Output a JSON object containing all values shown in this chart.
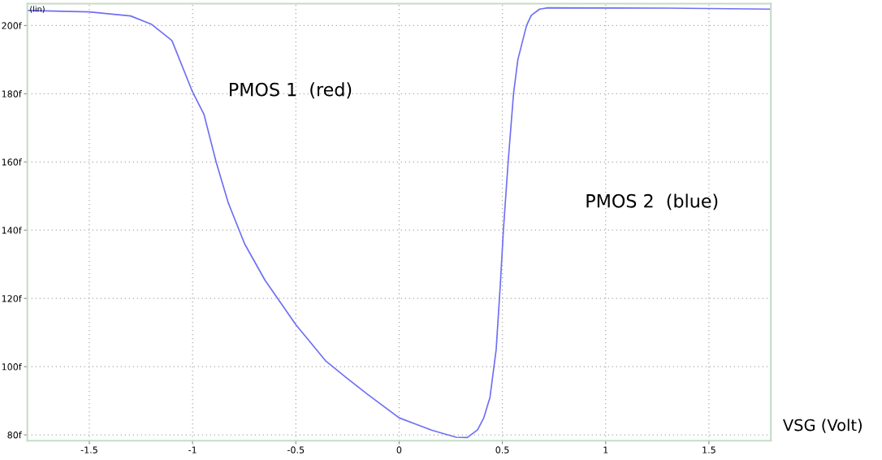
{
  "chart_data": {
    "type": "line",
    "xlabel": "VSG (Volt)",
    "ylabel": "(lin)",
    "annotations": [
      "PMOS 1  (red)",
      "PMOS 2  (blue)"
    ],
    "x": [
      -1.8,
      -1.5,
      -1.3,
      -1.2,
      -1.1,
      -1.0,
      -0.945,
      -0.886,
      -0.827,
      -0.748,
      -0.65,
      -0.5,
      -0.354,
      -0.256,
      -0.157,
      0,
      0.157,
      0.276,
      0.33,
      0.38,
      0.41,
      0.44,
      0.47,
      0.49,
      0.505,
      0.528,
      0.554,
      0.575,
      0.617,
      0.64,
      0.68,
      0.72,
      1.3,
      1.8
    ],
    "series": [
      {
        "color": "#6f6ff5",
        "values": [
          204.4,
          204.0,
          202.8,
          200.4,
          195.6,
          180.5,
          174,
          160,
          148,
          136,
          125.4,
          112.3,
          101.6,
          96.8,
          92.1,
          85.0,
          81.4,
          79.3,
          79.2,
          81.5,
          85,
          91,
          105,
          124,
          140,
          160,
          180,
          190,
          200,
          203,
          204.8,
          205.2,
          205.1,
          204.8
        ]
      }
    ],
    "xlim": [
      -1.8,
      1.8
    ],
    "ylim": [
      78.3,
      206.4
    ],
    "xticks": [
      -1.5,
      -1,
      -0.5,
      0,
      0.5,
      1,
      1.5
    ],
    "yticks": [
      {
        "value": 80,
        "label": "80f"
      },
      {
        "value": 100,
        "label": "100f"
      },
      {
        "value": 120,
        "label": "120f"
      },
      {
        "value": 140,
        "label": "140f"
      },
      {
        "value": 160,
        "label": "160f"
      },
      {
        "value": 180,
        "label": "180f"
      },
      {
        "value": 200,
        "label": "200f"
      }
    ],
    "grid": true,
    "line_style": "solid"
  }
}
